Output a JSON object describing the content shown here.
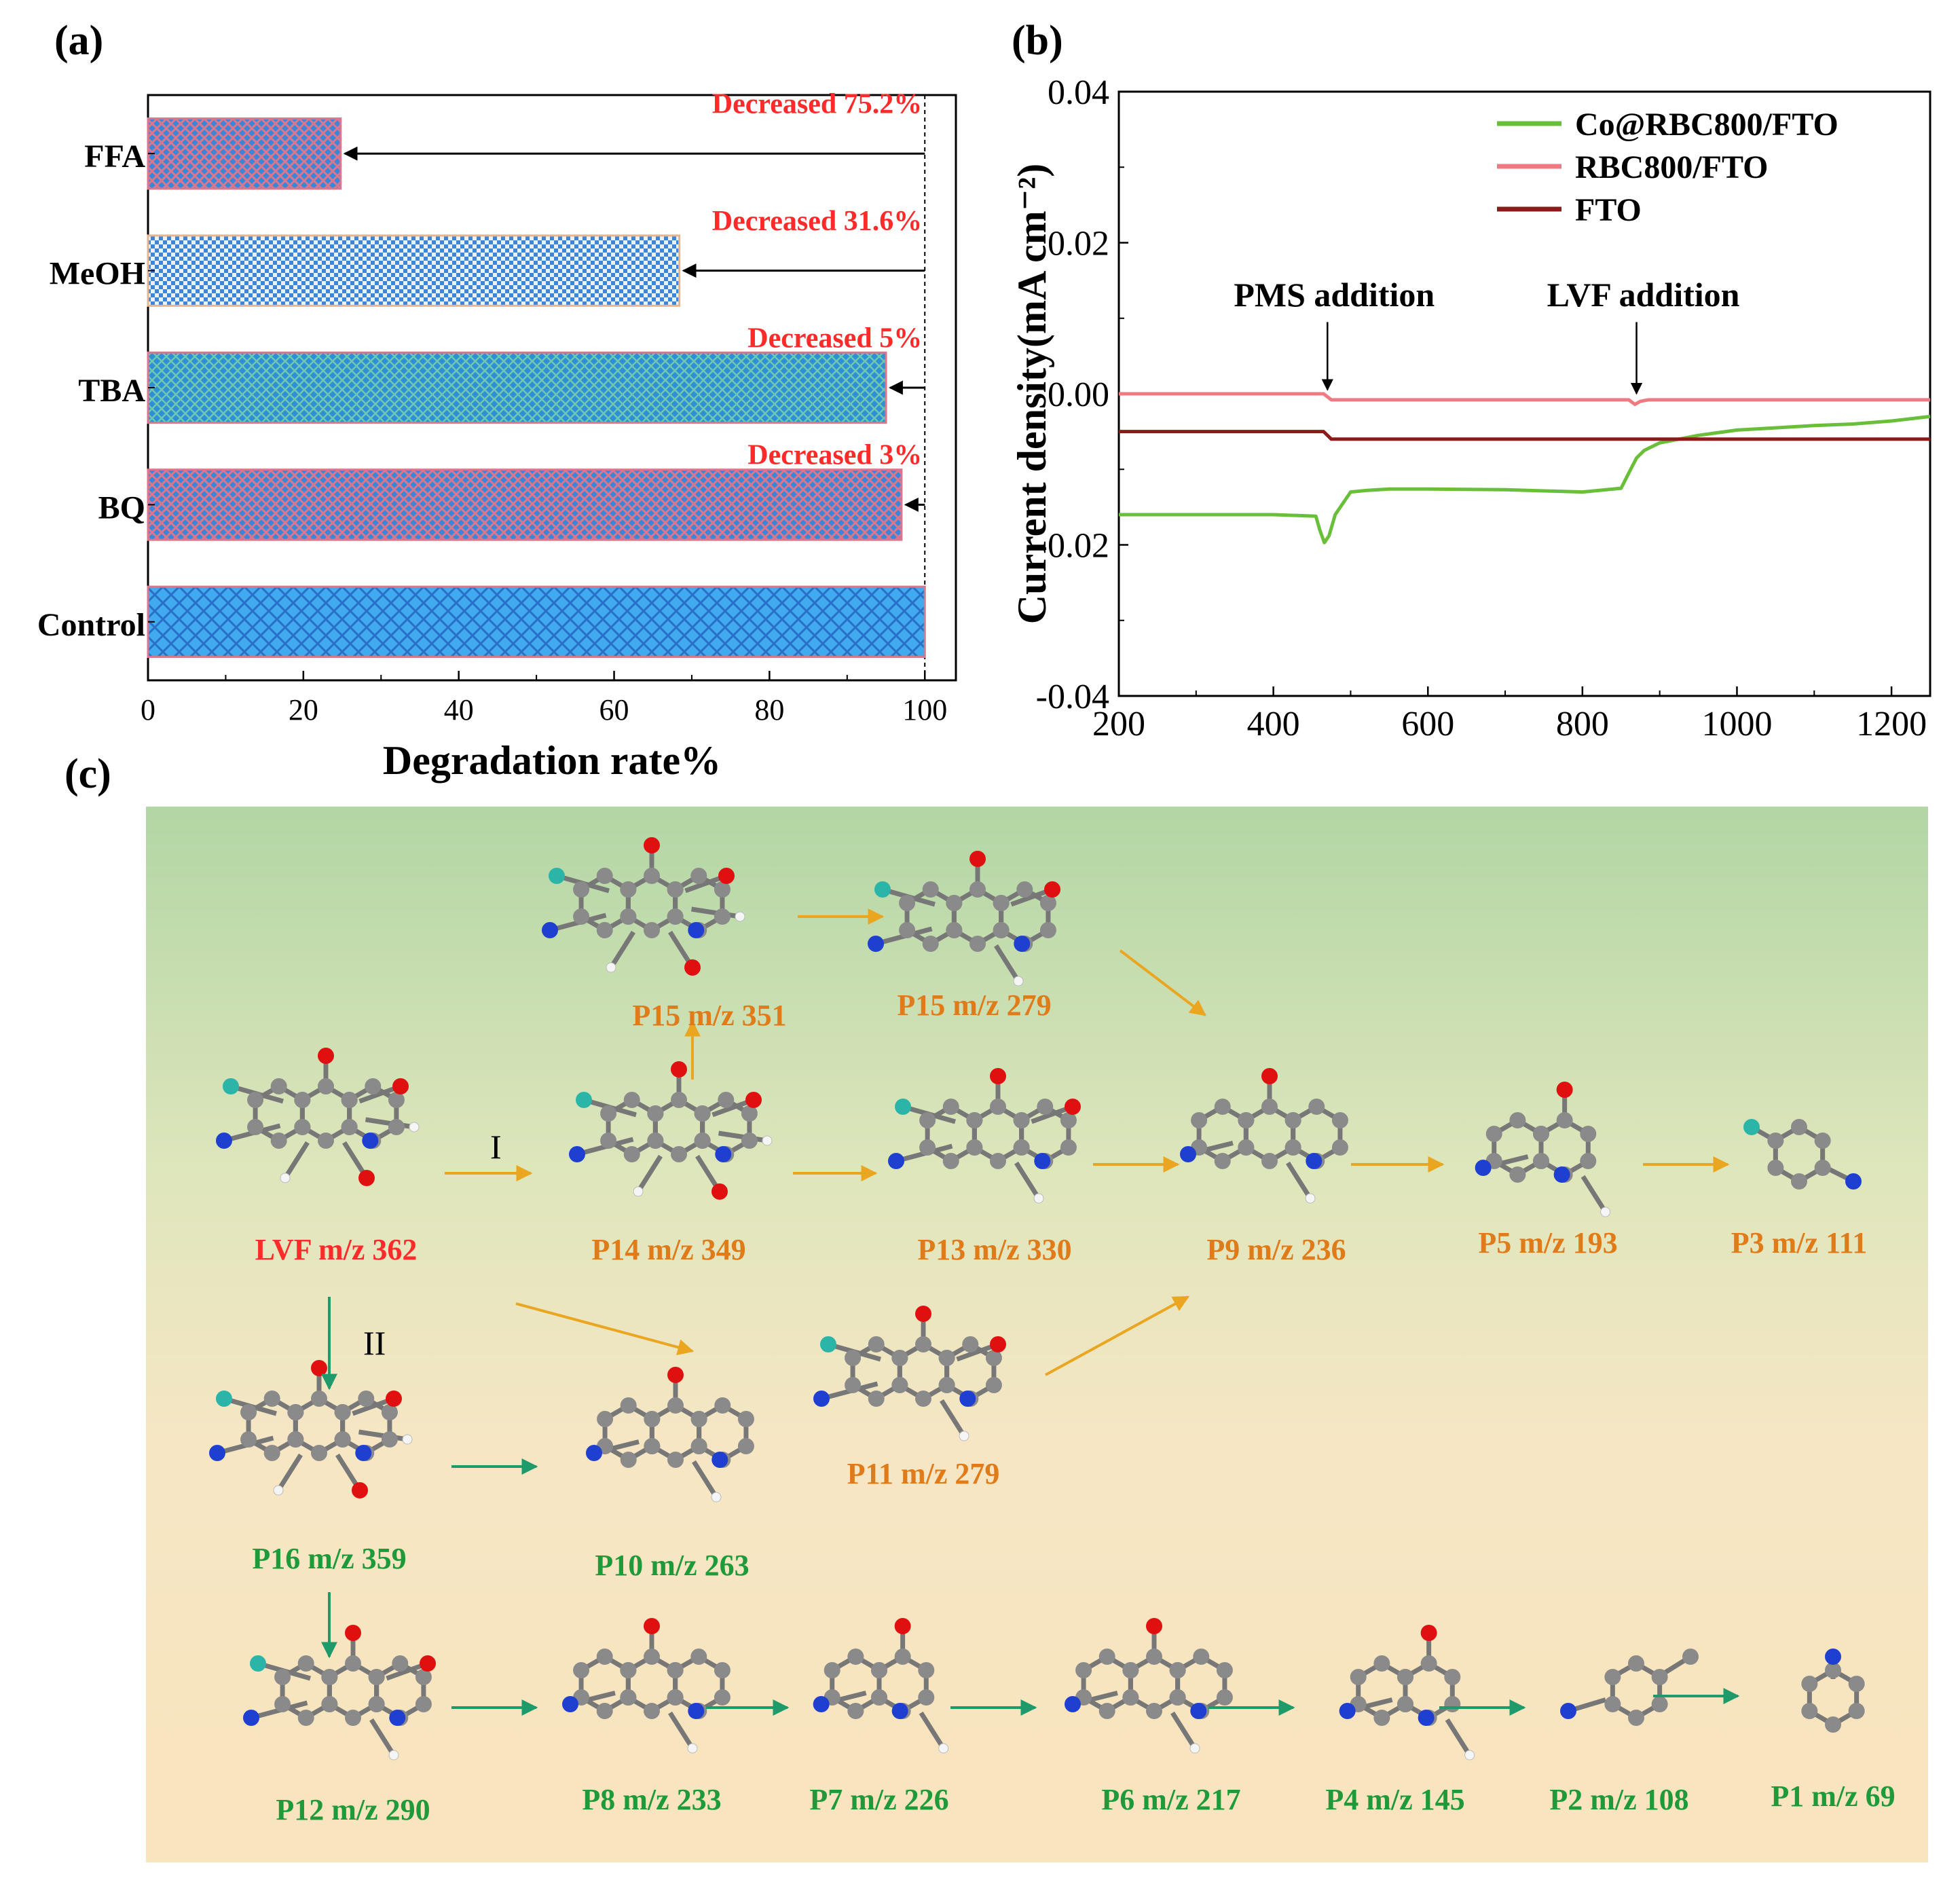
{
  "panels": {
    "a": {
      "label": "(a)"
    },
    "b": {
      "label": "(b)"
    },
    "c": {
      "label": "(c)"
    }
  },
  "colors": {
    "bar_fill": "#3b86d9",
    "bar_pattern_pink": "#d9778f",
    "bar_pattern_light": "#e9f2fb",
    "annotation_red": "#ff2a2a",
    "series_green": "#6abf3a",
    "series_pink": "#f07a82",
    "series_darkred": "#8b1a1a",
    "orange_text": "#e07b1a",
    "green_text": "#1f9a3a",
    "arrow_orange": "#eaa620",
    "arrow_green": "#1f9a6a",
    "atom_C": "#8a8a8a",
    "atom_O": "#e01010",
    "atom_N": "#1f3fd1",
    "atom_F": "#2bb5a8",
    "atom_H": "#f5f5f5"
  },
  "chart_data": [
    {
      "id": "a",
      "type": "bar",
      "orientation": "horizontal",
      "categories": [
        "FFA",
        "MeOH",
        "TBA",
        "BQ",
        "Control"
      ],
      "values": [
        24.8,
        68.4,
        95.0,
        97.0,
        100.0
      ],
      "annotations": [
        "Decreased 75.2%",
        "Decreased 31.6%",
        "Decreased 5%",
        "Decreased 3%",
        ""
      ],
      "xlabel": "Degradation rate%",
      "xlim": [
        0,
        104
      ],
      "xticks": [
        0,
        20,
        40,
        60,
        80,
        100
      ],
      "reference_line": 100,
      "grid": false
    },
    {
      "id": "b",
      "type": "line",
      "ylabel": "Current density(mA cm⁻²)",
      "xlim": [
        200,
        1250
      ],
      "ylim": [
        -0.04,
        0.04
      ],
      "xticks": [
        200,
        400,
        600,
        800,
        1000,
        1200
      ],
      "yticks": [
        -0.04,
        -0.02,
        0.0,
        0.02,
        0.04
      ],
      "ytick_labels": [
        "-0.04",
        "-0.02",
        "0.00",
        "0.02",
        "0.04"
      ],
      "annotations": [
        {
          "text": "PMS addition",
          "x": 470,
          "y": 0.0
        },
        {
          "text": "LVF addition",
          "x": 870,
          "y": -0.0005
        }
      ],
      "legend_position": "top-right",
      "series": [
        {
          "name": "Co@RBC800/FTO",
          "color": "#6abf3a",
          "x": [
            200,
            300,
            400,
            455,
            460,
            466,
            472,
            480,
            500,
            520,
            550,
            600,
            700,
            800,
            850,
            860,
            870,
            880,
            900,
            950,
            1000,
            1050,
            1100,
            1150,
            1200,
            1250
          ],
          "y": [
            -0.016,
            -0.016,
            -0.016,
            -0.0162,
            -0.018,
            -0.0197,
            -0.0188,
            -0.016,
            -0.013,
            -0.0128,
            -0.0126,
            -0.0126,
            -0.0127,
            -0.013,
            -0.0125,
            -0.0105,
            -0.0085,
            -0.0075,
            -0.0065,
            -0.0055,
            -0.0048,
            -0.0045,
            -0.0042,
            -0.004,
            -0.0036,
            -0.003
          ]
        },
        {
          "name": "RBC800/FTO",
          "color": "#f07a82",
          "x": [
            200,
            465,
            475,
            860,
            868,
            875,
            885,
            1250
          ],
          "y": [
            0.0,
            0.0,
            -0.0008,
            -0.0008,
            -0.0014,
            -0.001,
            -0.0008,
            -0.0008
          ]
        },
        {
          "name": "FTO",
          "color": "#8b1a1a",
          "x": [
            200,
            465,
            475,
            1250
          ],
          "y": [
            -0.005,
            -0.005,
            -0.006,
            -0.006
          ]
        }
      ]
    }
  ],
  "pathway": {
    "route_I": "I",
    "route_II": "II",
    "compounds": {
      "P15a": "P15 m/z 351",
      "P15b": "P15 m/z 279",
      "LVF": "LVF m/z 362",
      "P14": "P14 m/z 349",
      "P13": "P13 m/z 330",
      "P9": "P9 m/z 236",
      "P5": "P5 m/z 193",
      "P3": "P3 m/z 111",
      "P11": "P11 m/z 279",
      "P16": "P16 m/z 359",
      "P10": "P10 m/z 263",
      "P12": "P12 m/z 290",
      "P8": "P8 m/z 233",
      "P7": "P7 m/z 226",
      "P6": "P6 m/z 217",
      "P4": "P4 m/z 145",
      "P2": "P2 m/z 108",
      "P1": "P1 m/z 69"
    }
  }
}
